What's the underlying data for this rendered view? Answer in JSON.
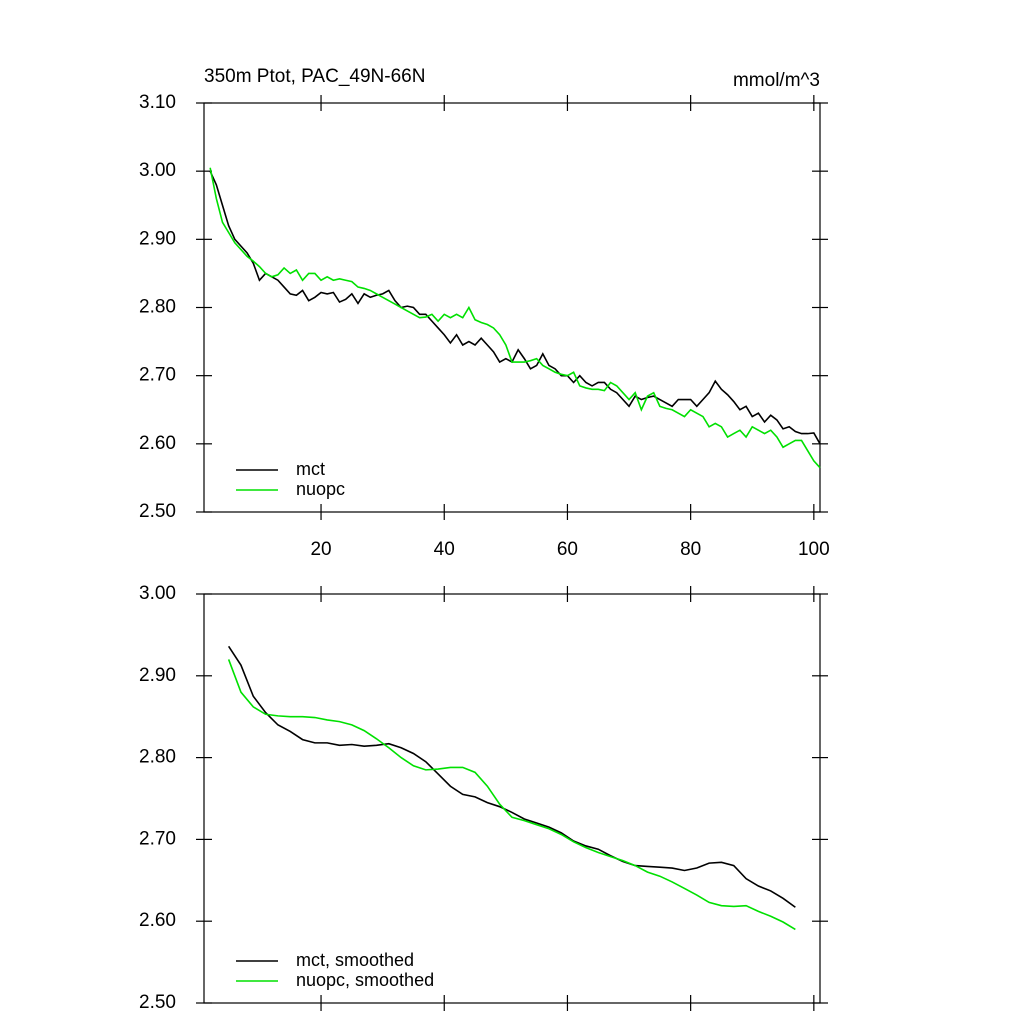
{
  "chart_data": [
    {
      "type": "line",
      "title": "350m Ptot, PAC_49N-66N",
      "units": "mmol/m^3",
      "legend": "lower left",
      "xtick_labels": true,
      "xlim": [
        1,
        101
      ],
      "xticks": [
        20,
        40,
        60,
        80,
        100
      ],
      "ylim": [
        2.5,
        3.1
      ],
      "yticks": [
        {
          "value": 2.5,
          "label": "2.50"
        },
        {
          "value": 2.6,
          "label": "2.60"
        },
        {
          "value": 2.7,
          "label": "2.70"
        },
        {
          "value": 2.8,
          "label": "2.80"
        },
        {
          "value": 2.9,
          "label": "2.90"
        },
        {
          "value": 3.0,
          "label": "3.00"
        },
        {
          "value": 3.1,
          "label": "3.10"
        }
      ],
      "x": [
        2,
        3,
        4,
        5,
        6,
        7,
        8,
        9,
        10,
        11,
        12,
        13,
        14,
        15,
        16,
        17,
        18,
        19,
        20,
        21,
        22,
        23,
        24,
        25,
        26,
        27,
        28,
        29,
        30,
        31,
        32,
        33,
        34,
        35,
        36,
        37,
        38,
        39,
        40,
        41,
        42,
        43,
        44,
        45,
        46,
        47,
        48,
        49,
        50,
        51,
        52,
        53,
        54,
        55,
        56,
        57,
        58,
        59,
        60,
        61,
        62,
        63,
        64,
        65,
        66,
        67,
        68,
        69,
        70,
        71,
        72,
        73,
        74,
        75,
        76,
        77,
        78,
        79,
        80,
        81,
        82,
        83,
        84,
        85,
        86,
        87,
        88,
        89,
        90,
        91,
        92,
        93,
        94,
        95,
        96,
        97,
        98,
        99,
        100,
        101
      ],
      "series": [
        {
          "name": "mct",
          "color": "#000000",
          "values": [
            3.0,
            2.98,
            2.95,
            2.92,
            2.9,
            2.89,
            2.88,
            2.865,
            2.84,
            2.85,
            2.845,
            2.84,
            2.83,
            2.82,
            2.818,
            2.825,
            2.81,
            2.815,
            2.822,
            2.82,
            2.822,
            2.808,
            2.812,
            2.82,
            2.806,
            2.82,
            2.815,
            2.818,
            2.82,
            2.825,
            2.81,
            2.8,
            2.802,
            2.8,
            2.79,
            2.79,
            2.78,
            2.77,
            2.76,
            2.748,
            2.76,
            2.745,
            2.75,
            2.745,
            2.755,
            2.745,
            2.735,
            2.72,
            2.725,
            2.72,
            2.738,
            2.725,
            2.71,
            2.715,
            2.732,
            2.715,
            2.71,
            2.7,
            2.7,
            2.69,
            2.7,
            2.69,
            2.685,
            2.69,
            2.69,
            2.68,
            2.675,
            2.665,
            2.655,
            2.67,
            2.665,
            2.668,
            2.67,
            2.665,
            2.66,
            2.655,
            2.665,
            2.665,
            2.665,
            2.655,
            2.665,
            2.675,
            2.692,
            2.68,
            2.672,
            2.662,
            2.65,
            2.655,
            2.64,
            2.645,
            2.632,
            2.642,
            2.635,
            2.622,
            2.625,
            2.618,
            2.615,
            2.615,
            2.616,
            2.6
          ]
        },
        {
          "name": "nuopc",
          "color": "#00e000",
          "values": [
            3.005,
            2.96,
            2.925,
            2.91,
            2.895,
            2.885,
            2.875,
            2.868,
            2.86,
            2.85,
            2.845,
            2.848,
            2.858,
            2.85,
            2.855,
            2.84,
            2.85,
            2.85,
            2.84,
            2.845,
            2.84,
            2.842,
            2.84,
            2.838,
            2.83,
            2.828,
            2.825,
            2.82,
            2.815,
            2.81,
            2.805,
            2.8,
            2.795,
            2.79,
            2.785,
            2.786,
            2.79,
            2.78,
            2.79,
            2.785,
            2.79,
            2.785,
            2.8,
            2.782,
            2.778,
            2.775,
            2.77,
            2.76,
            2.745,
            2.72,
            2.72,
            2.72,
            2.722,
            2.725,
            2.715,
            2.71,
            2.705,
            2.702,
            2.7,
            2.705,
            2.685,
            2.682,
            2.68,
            2.68,
            2.678,
            2.69,
            2.685,
            2.675,
            2.665,
            2.675,
            2.65,
            2.67,
            2.675,
            2.655,
            2.652,
            2.65,
            2.645,
            2.64,
            2.65,
            2.645,
            2.64,
            2.625,
            2.63,
            2.625,
            2.61,
            2.615,
            2.62,
            2.61,
            2.625,
            2.62,
            2.615,
            2.62,
            2.61,
            2.595,
            2.6,
            2.605,
            2.605,
            2.59,
            2.575,
            2.565
          ]
        }
      ]
    },
    {
      "type": "line",
      "legend": "lower left",
      "xtick_labels": false,
      "xlim": [
        1,
        101
      ],
      "xticks": [
        20,
        40,
        60,
        80,
        100
      ],
      "ylim": [
        2.5,
        3.0
      ],
      "yticks": [
        {
          "value": 2.5,
          "label": "2.50"
        },
        {
          "value": 2.6,
          "label": "2.60"
        },
        {
          "value": 2.7,
          "label": "2.70"
        },
        {
          "value": 2.8,
          "label": "2.80"
        },
        {
          "value": 2.9,
          "label": "2.90"
        },
        {
          "value": 3.0,
          "label": "3.00"
        }
      ],
      "x": [
        5,
        7,
        9,
        11,
        13,
        15,
        17,
        19,
        21,
        23,
        25,
        27,
        29,
        31,
        33,
        35,
        37,
        39,
        41,
        43,
        45,
        47,
        49,
        51,
        53,
        55,
        57,
        59,
        61,
        63,
        65,
        67,
        69,
        71,
        73,
        75,
        77,
        79,
        81,
        83,
        85,
        87,
        89,
        91,
        93,
        95,
        97
      ],
      "series": [
        {
          "name": "mct, smoothed",
          "color": "#000000",
          "values": [
            2.936,
            2.913,
            2.875,
            2.855,
            2.84,
            2.832,
            2.822,
            2.818,
            2.818,
            2.815,
            2.816,
            2.814,
            2.815,
            2.817,
            2.812,
            2.805,
            2.795,
            2.78,
            2.765,
            2.755,
            2.752,
            2.745,
            2.74,
            2.733,
            2.725,
            2.72,
            2.715,
            2.708,
            2.698,
            2.692,
            2.688,
            2.68,
            2.673,
            2.668,
            2.667,
            2.666,
            2.665,
            2.662,
            2.665,
            2.671,
            2.672,
            2.668,
            2.652,
            2.643,
            2.637,
            2.628,
            2.617
          ]
        },
        {
          "name": "nuopc, smoothed",
          "color": "#00e000",
          "values": [
            2.92,
            2.88,
            2.862,
            2.853,
            2.851,
            2.85,
            2.85,
            2.849,
            2.846,
            2.844,
            2.84,
            2.833,
            2.823,
            2.812,
            2.8,
            2.79,
            2.785,
            2.786,
            2.788,
            2.788,
            2.782,
            2.765,
            2.743,
            2.727,
            2.723,
            2.718,
            2.713,
            2.706,
            2.697,
            2.69,
            2.684,
            2.679,
            2.674,
            2.668,
            2.66,
            2.655,
            2.648,
            2.64,
            2.632,
            2.623,
            2.619,
            2.618,
            2.619,
            2.612,
            2.606,
            2.599,
            2.59
          ]
        }
      ]
    }
  ]
}
